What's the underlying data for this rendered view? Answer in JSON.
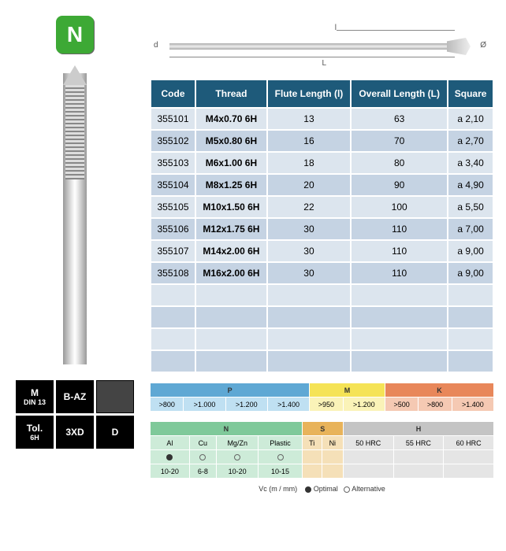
{
  "badge": {
    "letter": "N",
    "bg": "#3da935"
  },
  "diagram": {
    "d": "d",
    "l": "l",
    "L": "L",
    "dia": "Ø"
  },
  "specs": [
    {
      "line1": "M",
      "line2": "DIN 13"
    },
    {
      "line1": "B-AZ",
      "line2": ""
    },
    {
      "img": true
    },
    {
      "line1": "Tol.",
      "line2": "6H"
    },
    {
      "line1": "3XD",
      "line2": ""
    },
    {
      "line1": "D",
      "line2": ""
    }
  ],
  "table": {
    "headers": [
      "Code",
      "Thread",
      "Flute Length (l)",
      "Overall Length (L)",
      "Square"
    ],
    "rows": [
      [
        "355101",
        "M4x0.70 6H",
        "13",
        "63",
        "a 2,10"
      ],
      [
        "355102",
        "M5x0.80 6H",
        "16",
        "70",
        "a 2,70"
      ],
      [
        "355103",
        "M6x1.00 6H",
        "18",
        "80",
        "a 3,40"
      ],
      [
        "355104",
        "M8x1.25 6H",
        "20",
        "90",
        "a 4,90"
      ],
      [
        "355105",
        "M10x1.50 6H",
        "22",
        "100",
        "a 5,50"
      ],
      [
        "355106",
        "M12x1.75 6H",
        "30",
        "110",
        "a 7,00"
      ],
      [
        "355107",
        "M14x2.00 6H",
        "30",
        "110",
        "a 9,00"
      ],
      [
        "355108",
        "M16x2.00 6H",
        "30",
        "110",
        "a 9,00"
      ]
    ],
    "empty_rows": 4
  },
  "materials": {
    "row1": {
      "groups": [
        {
          "label": "P",
          "bg_h": "#5fa8d4",
          "bg": "#bfe0f2",
          "cells": [
            ">800",
            ">1.000",
            ">1.200",
            ">1.400"
          ]
        },
        {
          "label": "M",
          "bg_h": "#f5e356",
          "bg": "#faf3b8",
          "cells": [
            ">950",
            ">1.200"
          ]
        },
        {
          "label": "K",
          "bg_h": "#e8875a",
          "bg": "#f5c9b3",
          "cells": [
            ">500",
            ">800",
            ">1.400"
          ]
        }
      ]
    },
    "row2": {
      "groups": [
        {
          "label": "N",
          "bg_h": "#7fc99a",
          "bg": "#cdebd8",
          "cells": [
            "Al",
            "Cu",
            "Mg/Zn",
            "Plastic"
          ],
          "marks": [
            "filled",
            "open",
            "open",
            "open"
          ],
          "vals": [
            "10-20",
            "6-8",
            "10-20",
            "10-15"
          ]
        },
        {
          "label": "S",
          "bg_h": "#e8b35a",
          "bg": "#f5e0b8",
          "cells": [
            "Ti",
            "Ni"
          ],
          "marks": [
            "",
            ""
          ],
          "vals": [
            "",
            ""
          ]
        },
        {
          "label": "H",
          "bg_h": "#c4c4c4",
          "bg": "#e5e5e5",
          "cells": [
            "50 HRC",
            "55 HRC",
            "60 HRC"
          ],
          "marks": [
            "",
            "",
            ""
          ],
          "vals": [
            "",
            "",
            ""
          ]
        }
      ]
    }
  },
  "legend": {
    "vc": "Vc (m / mm)",
    "opt": "Optimal",
    "alt": "Alternative"
  }
}
